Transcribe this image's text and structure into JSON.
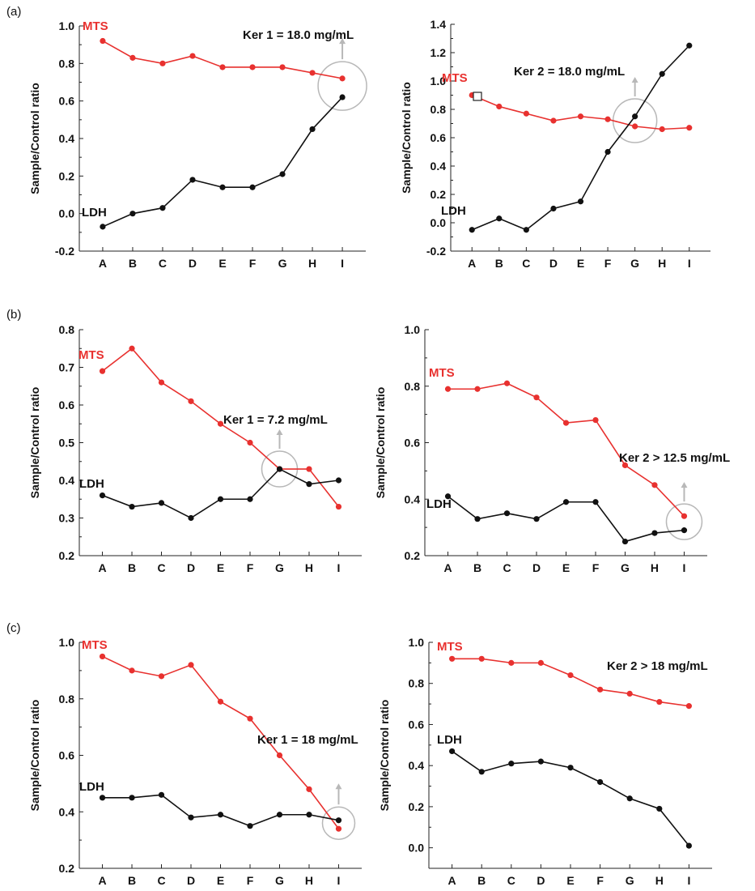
{
  "figure": {
    "panel_labels": [
      "(a)",
      "(b)",
      "(c)"
    ],
    "colors": {
      "mts": "#e8312f",
      "ldh": "#111111",
      "marker_circle": "#b8b8b8"
    }
  },
  "chart_data": [
    {
      "id": "a-left",
      "type": "line",
      "categories": [
        "A",
        "B",
        "C",
        "D",
        "E",
        "F",
        "G",
        "H",
        "I"
      ],
      "ylabel": "Sample/Control ratio",
      "ylim": [
        -0.2,
        1.0
      ],
      "yticks": [
        "-0.2",
        "0.0",
        "0.2",
        "0.4",
        "0.6",
        "0.8",
        "1.0"
      ],
      "annotation": "Ker 1 = 18.0 mg/mL",
      "series": [
        {
          "name": "MTS",
          "values": [
            0.92,
            0.83,
            0.8,
            0.84,
            0.78,
            0.78,
            0.78,
            0.75,
            0.72
          ]
        },
        {
          "name": "LDH",
          "values": [
            -0.07,
            0.0,
            0.03,
            0.18,
            0.14,
            0.14,
            0.21,
            0.45,
            0.62
          ]
        }
      ],
      "highlight": {
        "category": "I",
        "value": 0.68
      }
    },
    {
      "id": "a-right",
      "type": "line",
      "categories": [
        "A",
        "B",
        "C",
        "D",
        "E",
        "F",
        "G",
        "H",
        "I"
      ],
      "ylabel": "Sample/Control ratio",
      "ylim": [
        -0.2,
        1.4
      ],
      "yticks": [
        "-0.2",
        "0.0",
        "0.2",
        "0.4",
        "0.6",
        "0.8",
        "1.0",
        "1.2",
        "1.4"
      ],
      "annotation": "Ker 2 = 18.0 mg/mL",
      "series": [
        {
          "name": "MTS",
          "values": [
            0.9,
            0.82,
            0.77,
            0.72,
            0.75,
            0.73,
            0.68,
            0.66,
            0.67
          ]
        },
        {
          "name": "LDH",
          "values": [
            -0.05,
            0.03,
            -0.05,
            0.1,
            0.15,
            0.5,
            0.75,
            1.05,
            1.25
          ]
        }
      ],
      "highlight": {
        "category": "G",
        "value": 0.72
      }
    },
    {
      "id": "b-left",
      "type": "line",
      "categories": [
        "A",
        "B",
        "C",
        "D",
        "E",
        "F",
        "G",
        "H",
        "I"
      ],
      "ylabel": "Sample/Control ratio",
      "ylim": [
        0.2,
        0.8
      ],
      "yticks": [
        "0.2",
        "0.3",
        "0.4",
        "0.5",
        "0.6",
        "0.7",
        "0.8"
      ],
      "annotation": "Ker 1 = 7.2 mg/mL",
      "series": [
        {
          "name": "MTS",
          "values": [
            0.69,
            0.75,
            0.66,
            0.61,
            0.55,
            0.5,
            0.43,
            0.43,
            0.33
          ]
        },
        {
          "name": "LDH",
          "values": [
            0.36,
            0.33,
            0.34,
            0.3,
            0.35,
            0.35,
            0.43,
            0.39,
            0.4
          ]
        }
      ],
      "highlight": {
        "category": "G",
        "value": 0.43
      }
    },
    {
      "id": "b-right",
      "type": "line",
      "categories": [
        "A",
        "B",
        "C",
        "D",
        "E",
        "F",
        "G",
        "H",
        "I"
      ],
      "ylabel": "Sample/Control ratio",
      "ylim": [
        0.2,
        1.0
      ],
      "yticks": [
        "0.2",
        "0.4",
        "0.6",
        "0.8",
        "1.0"
      ],
      "annotation": "Ker 2 > 12.5 mg/mL",
      "series": [
        {
          "name": "MTS",
          "values": [
            0.79,
            0.79,
            0.81,
            0.76,
            0.67,
            0.68,
            0.52,
            0.45,
            0.34
          ]
        },
        {
          "name": "LDH",
          "values": [
            0.41,
            0.33,
            0.35,
            0.33,
            0.39,
            0.39,
            0.25,
            0.28,
            0.29
          ]
        }
      ],
      "highlight": {
        "category": "I",
        "value": 0.32
      }
    },
    {
      "id": "c-left",
      "type": "line",
      "categories": [
        "A",
        "B",
        "C",
        "D",
        "E",
        "F",
        "G",
        "H",
        "I"
      ],
      "ylabel": "Sample/Control ratio",
      "ylim": [
        0.2,
        1.0
      ],
      "yticks": [
        "0.2",
        "0.4",
        "0.6",
        "0.8",
        "1.0"
      ],
      "annotation": "Ker 1 = 18 mg/mL",
      "series": [
        {
          "name": "MTS",
          "values": [
            0.95,
            0.9,
            0.88,
            0.92,
            0.79,
            0.73,
            0.6,
            0.48,
            0.34
          ]
        },
        {
          "name": "LDH",
          "values": [
            0.45,
            0.45,
            0.46,
            0.38,
            0.39,
            0.35,
            0.39,
            0.39,
            0.37
          ]
        }
      ],
      "highlight": {
        "category": "I",
        "value": 0.36
      }
    },
    {
      "id": "c-right",
      "type": "line",
      "categories": [
        "A",
        "B",
        "C",
        "D",
        "E",
        "F",
        "G",
        "H",
        "I"
      ],
      "ylabel": "Sample/Control ratio",
      "ylim": [
        -0.1,
        1.0
      ],
      "yticks": [
        "0.0",
        "0.2",
        "0.4",
        "0.6",
        "0.8",
        "1.0"
      ],
      "annotation": "Ker 2 > 18 mg/mL",
      "series": [
        {
          "name": "MTS",
          "values": [
            0.92,
            0.92,
            0.9,
            0.9,
            0.84,
            0.77,
            0.75,
            0.71,
            0.69
          ]
        },
        {
          "name": "LDH",
          "values": [
            0.47,
            0.37,
            0.41,
            0.42,
            0.39,
            0.32,
            0.24,
            0.19,
            0.01
          ]
        }
      ],
      "highlight": null
    }
  ]
}
